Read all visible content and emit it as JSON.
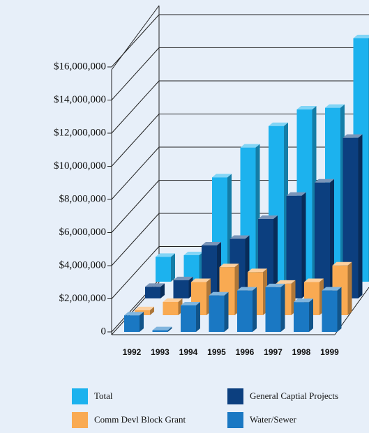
{
  "chart_data": {
    "type": "bar3d",
    "categories": [
      "1992",
      "1993",
      "1994",
      "1995",
      "1996",
      "1997",
      "1998",
      "1999"
    ],
    "series": [
      {
        "name": "Total",
        "color": "#1cb2ee",
        "values": [
          1500000,
          1600000,
          6300000,
          8100000,
          9400000,
          10400000,
          10500000,
          14700000
        ]
      },
      {
        "name": "General Captial Projects",
        "color": "#0c3f7f",
        "values": [
          700000,
          1100000,
          3200000,
          3600000,
          4800000,
          6200000,
          7000000,
          9700000
        ]
      },
      {
        "name": "Comm Devl Block Grant",
        "color": "#f9aa52",
        "values": [
          300000,
          800000,
          2000000,
          2900000,
          2600000,
          1900000,
          2000000,
          3000000
        ]
      },
      {
        "name": "Water/Sewer",
        "color": "#1a78c3",
        "values": [
          1000000,
          100000,
          1600000,
          2200000,
          2500000,
          2700000,
          1800000,
          2500000
        ]
      }
    ],
    "ylim": [
      0,
      16000000
    ],
    "yticks": [
      0,
      {
        "value": 2000000,
        "label": "$2,000,000"
      },
      {
        "value": 4000000,
        "label": "$4,000,000"
      },
      {
        "value": 6000000,
        "label": "$6,000,000"
      },
      {
        "value": 8000000,
        "label": "$8,000,000"
      },
      {
        "value": 10000000,
        "label": "$10,000,000"
      },
      {
        "value": 12000000,
        "label": "$12,000,000"
      },
      {
        "value": 14000000,
        "label": "$14,000,000"
      },
      {
        "value": 16000000,
        "label": "$16,000,000"
      }
    ],
    "grid": true
  }
}
